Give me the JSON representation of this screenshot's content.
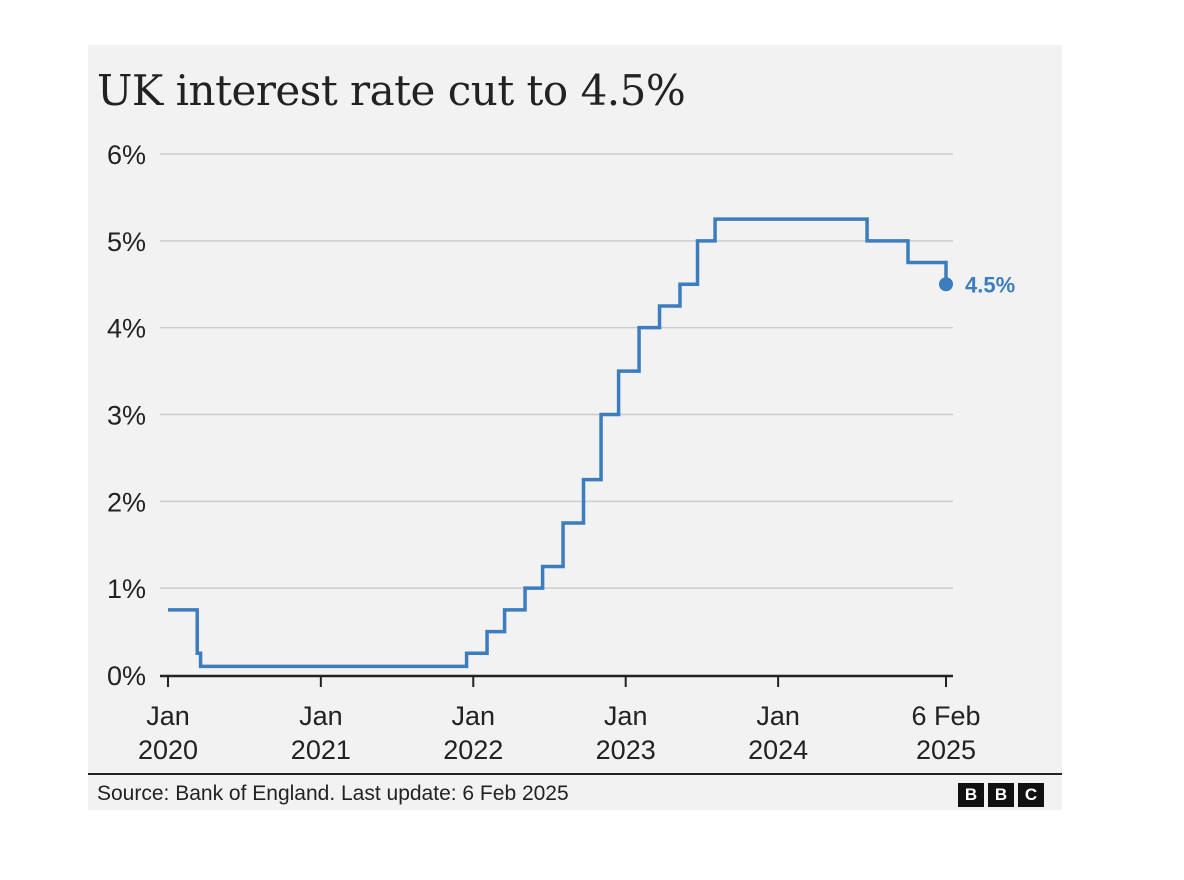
{
  "chart_data": {
    "type": "line",
    "title": "UK interest rate cut to 4.5%",
    "step": "after",
    "line_color": "#3b7dbf",
    "y_ticks": [
      "0%",
      "1%",
      "2%",
      "3%",
      "4%",
      "5%",
      "6%"
    ],
    "ylim": [
      0,
      6
    ],
    "x_ticks": [
      {
        "line1": "Jan",
        "line2": "2020",
        "date": "2020-01-01"
      },
      {
        "line1": "Jan",
        "line2": "2021",
        "date": "2021-01-01"
      },
      {
        "line1": "Jan",
        "line2": "2022",
        "date": "2022-01-01"
      },
      {
        "line1": "Jan",
        "line2": "2023",
        "date": "2023-01-01"
      },
      {
        "line1": "Jan",
        "line2": "2024",
        "date": "2024-01-01"
      },
      {
        "line1": "6 Feb",
        "line2": "2025",
        "date": "2025-02-06"
      }
    ],
    "xlim": [
      "2020-01-01",
      "2025-02-06"
    ],
    "grid": true,
    "series": [
      {
        "points": [
          {
            "date": "2020-01-01",
            "value": 0.75
          },
          {
            "date": "2020-03-11",
            "value": 0.25
          },
          {
            "date": "2020-03-19",
            "value": 0.1
          },
          {
            "date": "2021-12-16",
            "value": 0.25
          },
          {
            "date": "2022-02-03",
            "value": 0.5
          },
          {
            "date": "2022-03-17",
            "value": 0.75
          },
          {
            "date": "2022-05-05",
            "value": 1.0
          },
          {
            "date": "2022-06-16",
            "value": 1.25
          },
          {
            "date": "2022-08-04",
            "value": 1.75
          },
          {
            "date": "2022-09-22",
            "value": 2.25
          },
          {
            "date": "2022-11-03",
            "value": 3.0
          },
          {
            "date": "2022-12-15",
            "value": 3.5
          },
          {
            "date": "2023-02-02",
            "value": 4.0
          },
          {
            "date": "2023-03-23",
            "value": 4.25
          },
          {
            "date": "2023-05-11",
            "value": 4.5
          },
          {
            "date": "2023-06-22",
            "value": 5.0
          },
          {
            "date": "2023-08-03",
            "value": 5.25
          },
          {
            "date": "2024-08-01",
            "value": 5.0
          },
          {
            "date": "2024-11-07",
            "value": 4.75
          },
          {
            "date": "2025-02-06",
            "value": 4.5
          }
        ]
      }
    ],
    "end_label": "4.5%"
  },
  "source": "Source: Bank of England. Last update: 6 Feb 2025",
  "logo": [
    "B",
    "B",
    "C"
  ]
}
